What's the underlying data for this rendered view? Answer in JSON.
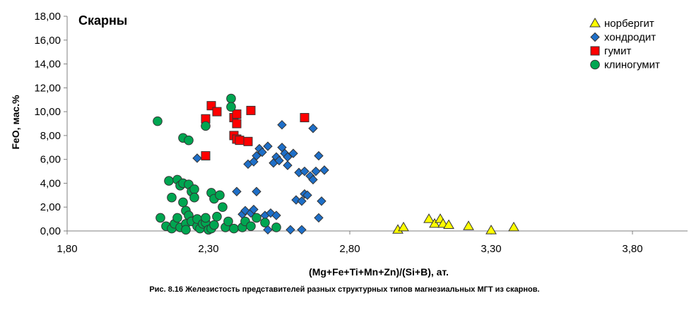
{
  "chart_data": {
    "type": "scatter",
    "title": "Скарны",
    "xlabel": "(Mg+Fe+Ti+Mn+Zn)/(Si+B), ат.",
    "ylabel": "FeO, мас.%",
    "xlim": [
      1.8,
      4.0
    ],
    "ylim": [
      0,
      18
    ],
    "x_ticks": [
      "1,80",
      "2,30",
      "2,80",
      "3,30",
      "3,80"
    ],
    "x_tick_values": [
      1.8,
      2.3,
      2.8,
      3.3,
      3.8
    ],
    "y_ticks": [
      "0,00",
      "2,00",
      "4,00",
      "6,00",
      "8,00",
      "10,00",
      "12,00",
      "14,00",
      "16,00",
      "18,00"
    ],
    "y_tick_values": [
      0,
      2,
      4,
      6,
      8,
      10,
      12,
      14,
      16,
      18
    ],
    "grid": false,
    "legend_position": "top-right",
    "series": [
      {
        "name": "норбергит",
        "marker": "triangle",
        "color": "#ffff00",
        "points": [
          [
            2.97,
            0.1
          ],
          [
            2.99,
            0.3
          ],
          [
            3.08,
            1.0
          ],
          [
            3.1,
            0.6
          ],
          [
            3.12,
            1.0
          ],
          [
            3.13,
            0.6
          ],
          [
            3.15,
            0.5
          ],
          [
            3.22,
            0.4
          ],
          [
            3.3,
            0.05
          ],
          [
            3.38,
            0.3
          ]
        ]
      },
      {
        "name": "хондродит",
        "marker": "diamond",
        "color": "#1e6fc8",
        "points": [
          [
            2.26,
            6.1
          ],
          [
            2.4,
            3.3
          ],
          [
            2.42,
            1.4
          ],
          [
            2.43,
            1.7
          ],
          [
            2.44,
            5.6
          ],
          [
            2.45,
            1.5
          ],
          [
            2.46,
            1.8
          ],
          [
            2.46,
            5.8
          ],
          [
            2.47,
            6.3
          ],
          [
            2.47,
            3.3
          ],
          [
            2.48,
            6.9
          ],
          [
            2.49,
            6.6
          ],
          [
            2.5,
            1.3
          ],
          [
            2.51,
            7.1
          ],
          [
            2.51,
            0.1
          ],
          [
            2.52,
            1.5
          ],
          [
            2.53,
            5.7
          ],
          [
            2.54,
            6.2
          ],
          [
            2.54,
            1.3
          ],
          [
            2.55,
            5.9
          ],
          [
            2.56,
            7.0
          ],
          [
            2.56,
            8.9
          ],
          [
            2.57,
            6.5
          ],
          [
            2.58,
            6.2
          ],
          [
            2.58,
            5.5
          ],
          [
            2.59,
            0.1
          ],
          [
            2.6,
            6.5
          ],
          [
            2.61,
            2.6
          ],
          [
            2.62,
            4.9
          ],
          [
            2.63,
            2.5
          ],
          [
            2.63,
            0.1
          ],
          [
            2.64,
            5.0
          ],
          [
            2.64,
            3.1
          ],
          [
            2.65,
            3.0
          ],
          [
            2.66,
            4.6
          ],
          [
            2.67,
            4.3
          ],
          [
            2.67,
            8.6
          ],
          [
            2.68,
            5.0
          ],
          [
            2.69,
            1.1
          ],
          [
            2.69,
            6.3
          ],
          [
            2.7,
            2.5
          ],
          [
            2.71,
            5.1
          ]
        ]
      },
      {
        "name": "гумит",
        "marker": "square",
        "color": "#ff0000",
        "points": [
          [
            2.29,
            9.4
          ],
          [
            2.29,
            6.3
          ],
          [
            2.31,
            10.5
          ],
          [
            2.33,
            10.0
          ],
          [
            2.39,
            9.5
          ],
          [
            2.39,
            8.0
          ],
          [
            2.4,
            7.7
          ],
          [
            2.4,
            9.8
          ],
          [
            2.4,
            9.0
          ],
          [
            2.41,
            7.6
          ],
          [
            2.44,
            7.5
          ],
          [
            2.45,
            10.1
          ],
          [
            2.64,
            9.5
          ]
        ]
      },
      {
        "name": "клиногумит",
        "marker": "circle",
        "color": "#00a651",
        "points": [
          [
            2.12,
            9.2
          ],
          [
            2.13,
            1.1
          ],
          [
            2.15,
            0.4
          ],
          [
            2.16,
            4.2
          ],
          [
            2.17,
            2.8
          ],
          [
            2.17,
            0.2
          ],
          [
            2.18,
            0.6
          ],
          [
            2.19,
            4.3
          ],
          [
            2.19,
            1.1
          ],
          [
            2.2,
            3.8
          ],
          [
            2.2,
            0.3
          ],
          [
            2.21,
            7.8
          ],
          [
            2.21,
            4.0
          ],
          [
            2.21,
            2.4
          ],
          [
            2.22,
            1.7
          ],
          [
            2.22,
            0.6
          ],
          [
            2.22,
            0.1
          ],
          [
            2.23,
            7.6
          ],
          [
            2.23,
            3.9
          ],
          [
            2.23,
            1.3
          ],
          [
            2.24,
            3.3
          ],
          [
            2.24,
            0.8
          ],
          [
            2.25,
            3.5
          ],
          [
            2.25,
            2.8
          ],
          [
            2.26,
            0.4
          ],
          [
            2.26,
            1.0
          ],
          [
            2.27,
            0.2
          ],
          [
            2.28,
            0.6
          ],
          [
            2.29,
            8.8
          ],
          [
            2.29,
            0.7
          ],
          [
            2.29,
            1.1
          ],
          [
            2.3,
            0.1
          ],
          [
            2.31,
            3.2
          ],
          [
            2.31,
            0.2
          ],
          [
            2.32,
            2.7
          ],
          [
            2.32,
            0.5
          ],
          [
            2.33,
            1.2
          ],
          [
            2.34,
            3.0
          ],
          [
            2.35,
            2.0
          ],
          [
            2.36,
            0.3
          ],
          [
            2.37,
            0.8
          ],
          [
            2.38,
            11.1
          ],
          [
            2.38,
            10.4
          ],
          [
            2.39,
            0.2
          ],
          [
            2.42,
            0.3
          ],
          [
            2.43,
            0.8
          ],
          [
            2.45,
            0.4
          ],
          [
            2.47,
            1.1
          ],
          [
            2.5,
            0.7
          ],
          [
            2.54,
            0.3
          ]
        ]
      }
    ]
  },
  "caption": "Рис. 8.16 Железистость  представителей  разных  структурных  типов  магнезиальных  МГТ  из  скарнов."
}
